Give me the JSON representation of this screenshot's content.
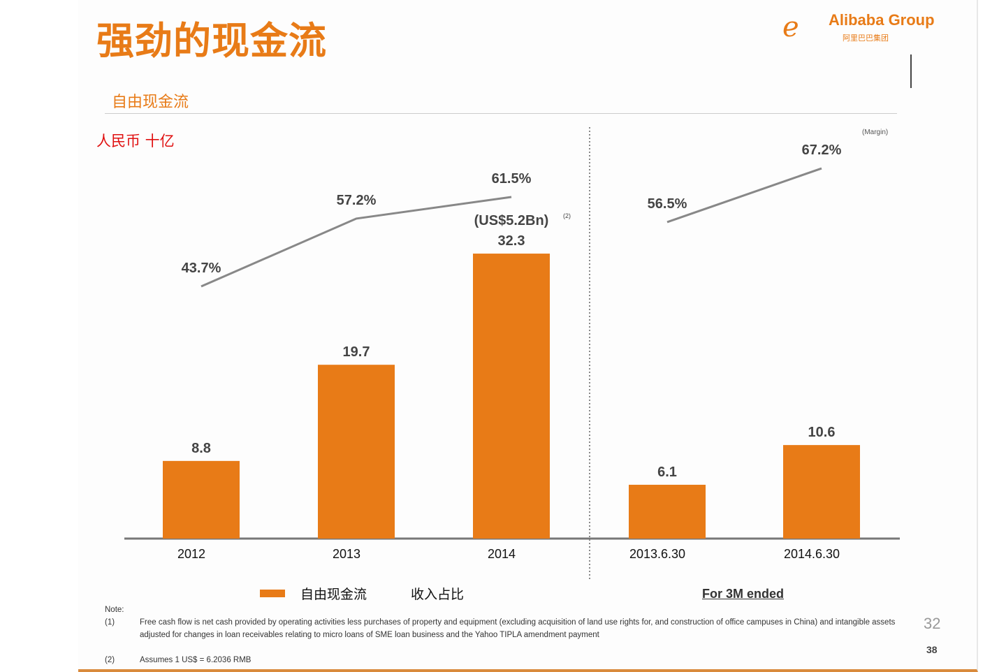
{
  "header": {
    "title": "强劲的现金流",
    "logo_text": "Alibaba Group",
    "logo_cn": "阿里巴巴集团",
    "subtitle": "自由现金流",
    "unit": "人民币 十亿"
  },
  "chart_data": {
    "type": "bar",
    "title": "自由现金流",
    "ylabel": "人民币 十亿",
    "categories": [
      "2012",
      "2013",
      "2014",
      "2013.6.30",
      "2014.6.30"
    ],
    "series": [
      {
        "name": "自由现金流",
        "type": "bar",
        "values": [
          8.8,
          19.7,
          32.3,
          6.1,
          10.6
        ],
        "labels": [
          "8.8",
          "19.7",
          "32.3",
          "6.1",
          "10.6"
        ]
      },
      {
        "name": "收入占比",
        "type": "line",
        "values": [
          43.7,
          57.2,
          61.5,
          56.5,
          67.2
        ],
        "labels": [
          "43.7%",
          "57.2%",
          "61.5%",
          "56.5%",
          "67.2%"
        ],
        "groups": [
          [
            0,
            1,
            2
          ],
          [
            3,
            4
          ]
        ]
      }
    ],
    "annotation": "(US$5.2Bn)",
    "annotation_note": "(2)",
    "margin_label": "(Margin)",
    "group_label": "For 3M ended",
    "legend": [
      "自由现金流",
      "收入占比"
    ],
    "legend_position": "bottom",
    "colors": {
      "bar": "#e87b17",
      "line": "#888888"
    }
  },
  "notes": {
    "heading": "Note:",
    "items": [
      {
        "n": "(1)",
        "text": "Free cash flow is net cash provided by operating activities less purchases of property and equipment (excluding acquisition of land use rights for, and construction of office campuses in China) and intangible assets adjusted for changes in loan receivables relating to micro loans of SME loan business and the Yahoo TIPLA amendment payment"
      },
      {
        "n": "(2)",
        "text": "Assumes 1 US$ = 6.2036 RMB"
      }
    ]
  },
  "page_number": "38",
  "overlay_page": "32"
}
